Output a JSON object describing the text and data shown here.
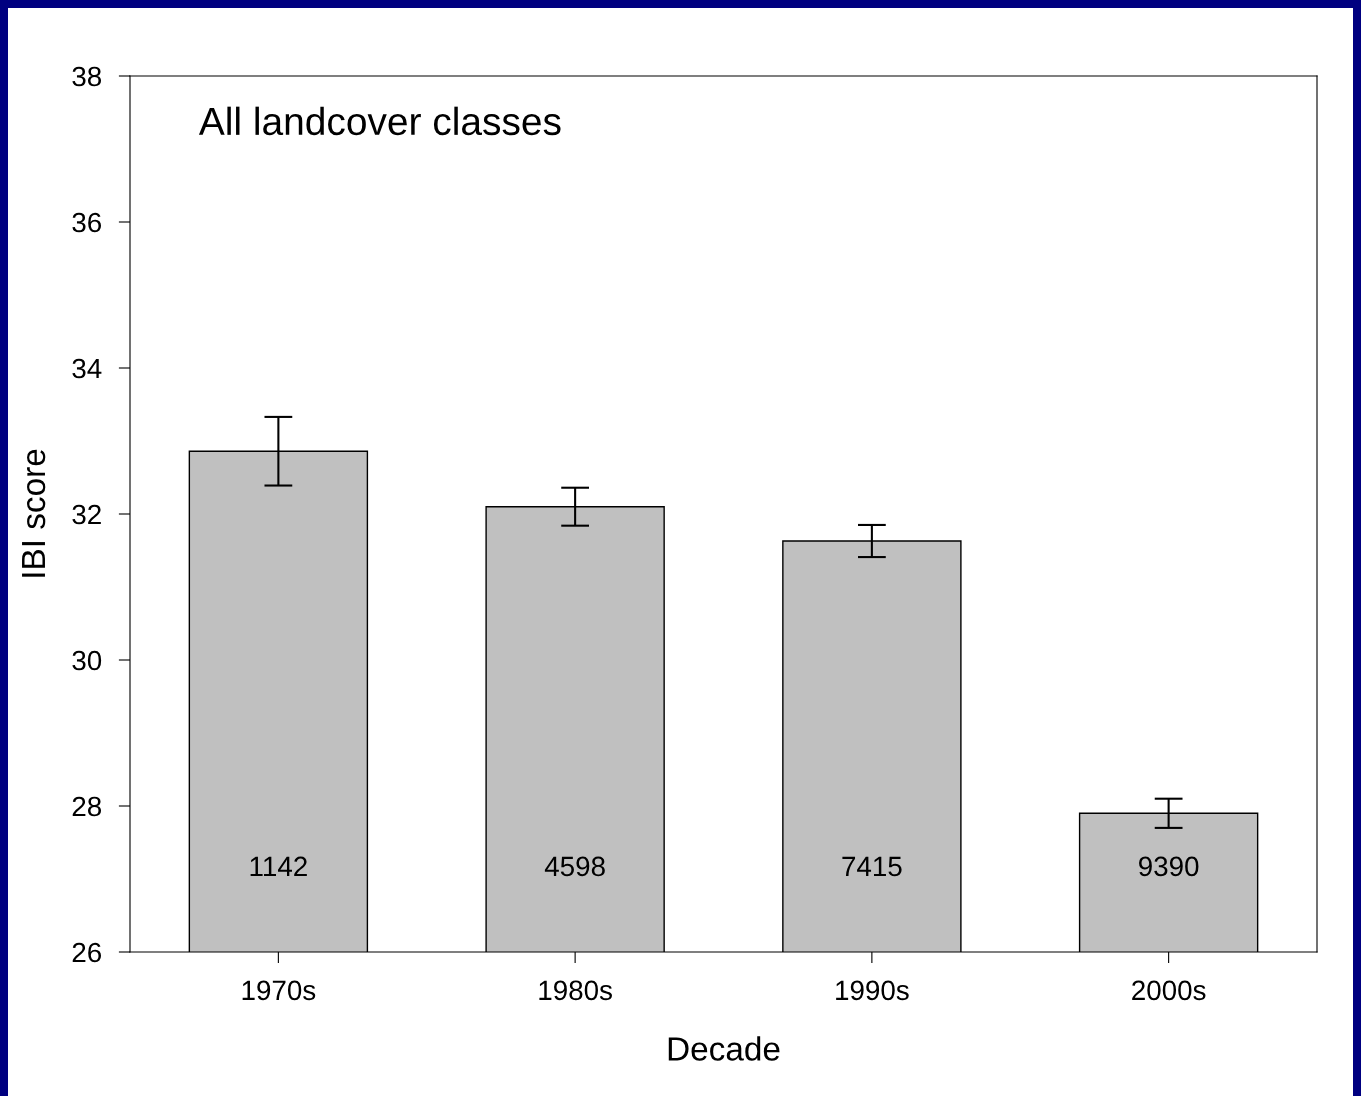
{
  "chart_data": {
    "type": "bar",
    "title": "All landcover classes",
    "xlabel": "Decade",
    "ylabel": "IBI score",
    "categories": [
      "1970s",
      "1980s",
      "1990s",
      "2000s"
    ],
    "values": [
      32.86,
      32.1,
      31.63,
      27.9
    ],
    "errors": [
      0.47,
      0.26,
      0.22,
      0.2
    ],
    "color": "#c0c0c0",
    "ylim": [
      26,
      38
    ],
    "yticks": [
      26,
      28,
      30,
      32,
      34,
      36,
      38
    ],
    "grid": false,
    "legend": false,
    "annotations": [
      "1142",
      "4598",
      "7415",
      "9390"
    ]
  }
}
